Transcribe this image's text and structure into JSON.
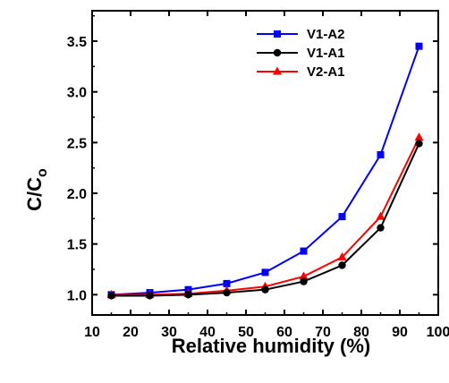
{
  "chart_data": {
    "type": "line",
    "xlabel": "Relative humidity (%)",
    "ylabel_main": "C/C",
    "ylabel_sub": "o",
    "xlim": [
      10,
      100
    ],
    "ylim": [
      0.8,
      3.8
    ],
    "xticks": [
      "10",
      "20",
      "30",
      "40",
      "50",
      "60",
      "70",
      "80",
      "90",
      "100"
    ],
    "yticks": [
      "1.0",
      "1.5",
      "2.0",
      "2.5",
      "3.0",
      "3.5"
    ],
    "x": [
      15,
      25,
      35,
      45,
      55,
      65,
      75,
      85,
      95
    ],
    "legend_position": "top-center",
    "grid": false,
    "series": [
      {
        "name": "V1-A2",
        "color": "#0000ff",
        "marker": "square",
        "values": [
          1.0,
          1.02,
          1.05,
          1.11,
          1.22,
          1.43,
          1.77,
          2.38,
          3.45
        ]
      },
      {
        "name": "V1-A1",
        "color": "#000000",
        "marker": "circle",
        "values": [
          0.99,
          0.99,
          1.0,
          1.02,
          1.05,
          1.13,
          1.29,
          1.66,
          2.49
        ]
      },
      {
        "name": "V2-A1",
        "color": "#ff0000",
        "marker": "triangle",
        "values": [
          1.0,
          1.0,
          1.01,
          1.04,
          1.08,
          1.18,
          1.37,
          1.77,
          2.55
        ]
      }
    ]
  }
}
